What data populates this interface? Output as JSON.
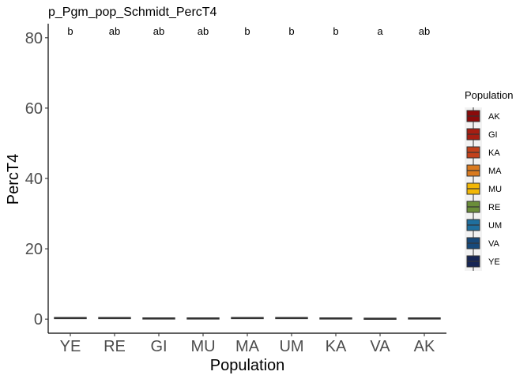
{
  "chart_data": {
    "type": "box",
    "title": "p_Pgm_pop_Schmidt_PercT4",
    "xlabel": "Population",
    "ylabel": "PercT4",
    "ylim": [
      -4,
      84
    ],
    "yticks": [
      0,
      20,
      40,
      60,
      80
    ],
    "categories": [
      "YE",
      "RE",
      "GI",
      "MU",
      "MA",
      "UM",
      "KA",
      "VA",
      "AK"
    ],
    "values": [
      0.3,
      0.3,
      0.2,
      0.2,
      0.3,
      0.3,
      0.2,
      0.1,
      0.2
    ],
    "significance_letters": [
      "b",
      "ab",
      "ab",
      "ab",
      "b",
      "b",
      "b",
      "a",
      "ab"
    ],
    "grid": false,
    "legend": {
      "title": "Population",
      "placement": "right",
      "entries": [
        {
          "label": "AK",
          "color": "#8B0A0A"
        },
        {
          "label": "GI",
          "color": "#A61E12"
        },
        {
          "label": "KA",
          "color": "#C2401A"
        },
        {
          "label": "MA",
          "color": "#D97A1F"
        },
        {
          "label": "MU",
          "color": "#F2B705"
        },
        {
          "label": "RE",
          "color": "#6B8E3A"
        },
        {
          "label": "UM",
          "color": "#1F6F9E"
        },
        {
          "label": "VA",
          "color": "#17497A"
        },
        {
          "label": "YE",
          "color": "#162554"
        }
      ]
    }
  }
}
